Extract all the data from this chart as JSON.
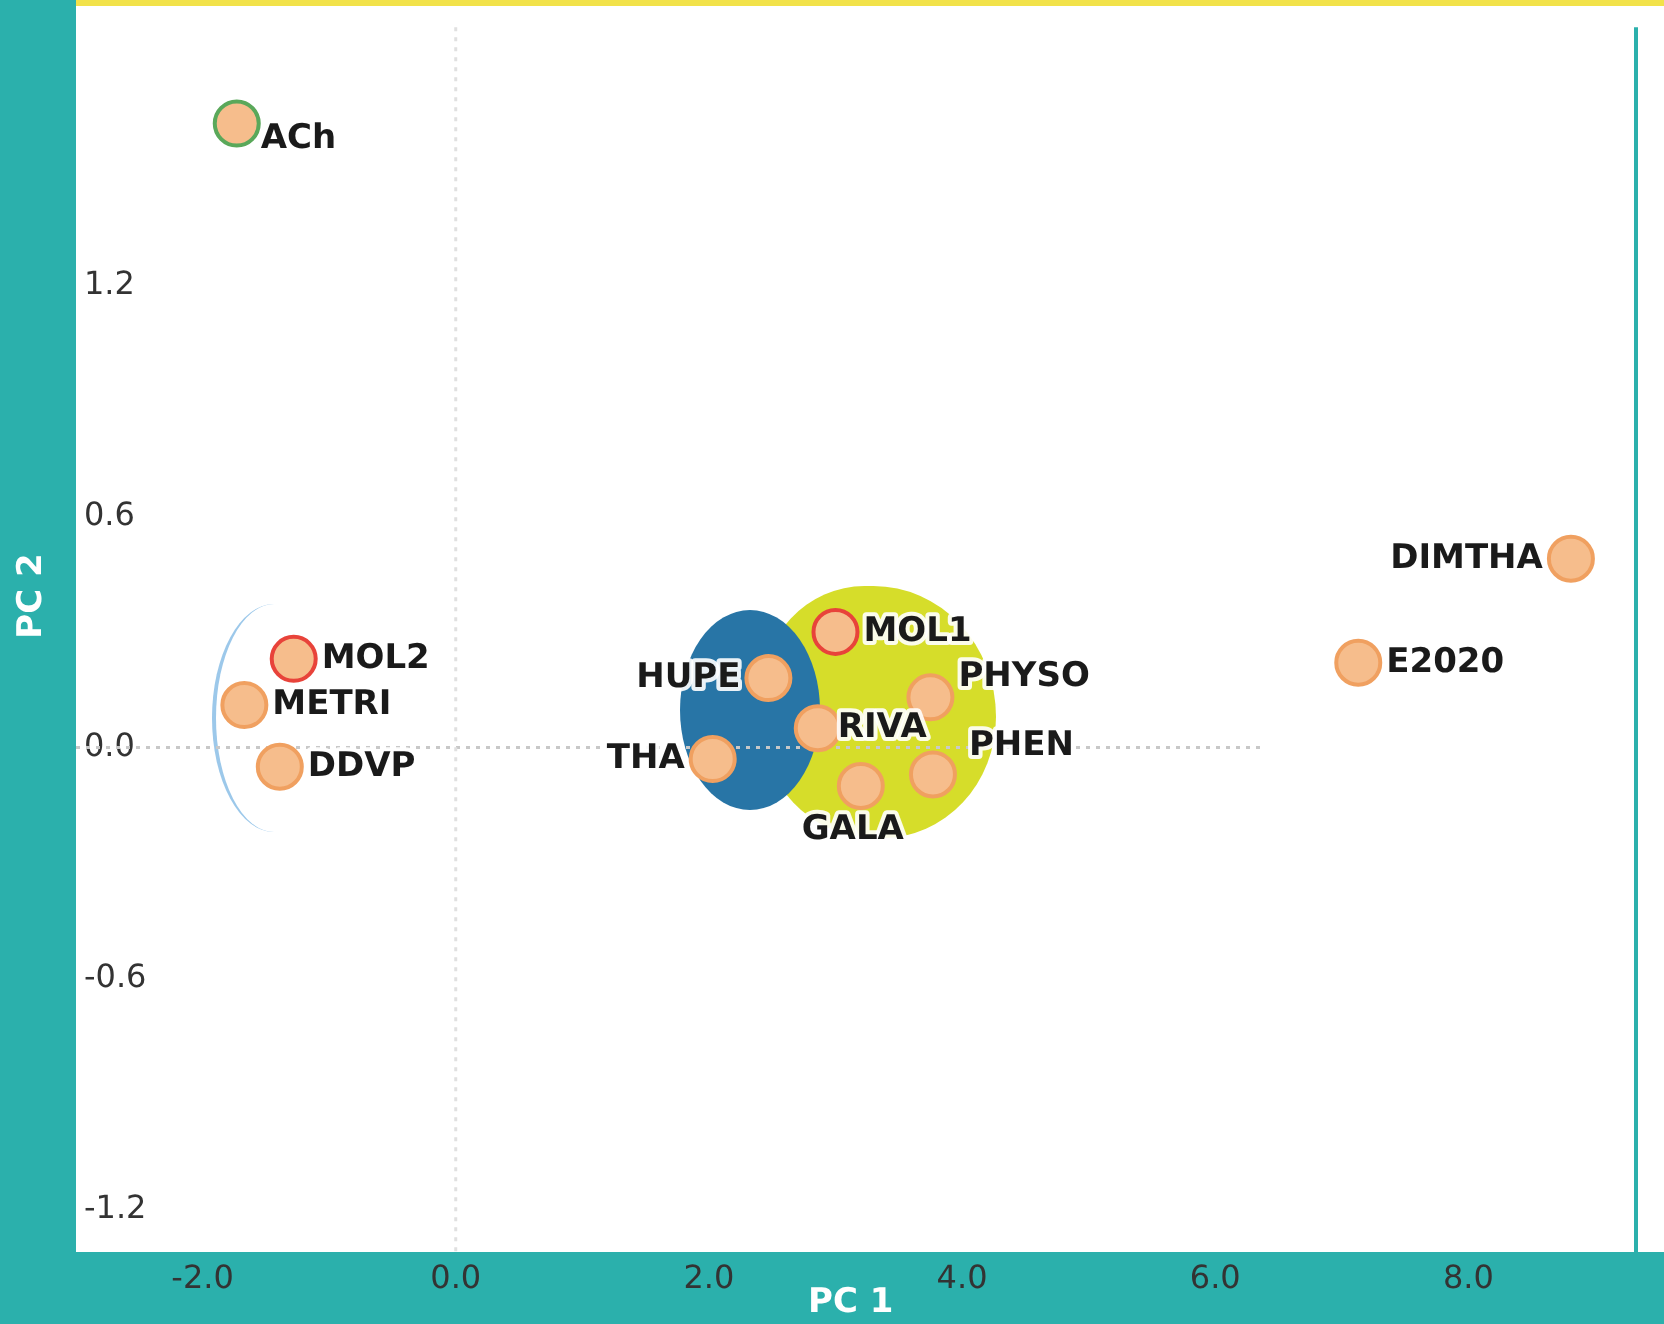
{
  "chart_data": {
    "type": "scatter",
    "xlabel": "PC 1",
    "ylabel": "PC 2",
    "xlim": [
      -3.0,
      9.34
    ],
    "xticks": [
      {
        "value": -2,
        "label": "-2.0"
      },
      {
        "value": 0,
        "label": "0.0"
      },
      {
        "value": 2,
        "label": "2.0"
      },
      {
        "value": 4,
        "label": "4.0"
      },
      {
        "value": 6,
        "label": "6.0"
      },
      {
        "value": 8,
        "label": "8.0"
      }
    ],
    "ylim": [
      -1.31,
      1.87
    ],
    "yticks": [
      {
        "value": -1.2,
        "label": "-1.2"
      },
      {
        "value": -0.6,
        "label": "-0.6"
      },
      {
        "value": 0,
        "label": "0.0"
      },
      {
        "value": 0.6,
        "label": "0.6"
      },
      {
        "value": 1.2,
        "label": "1.2"
      }
    ],
    "grid": false,
    "legend": false,
    "marker": "circle",
    "ref_lines": [
      {
        "axis": "y",
        "value": 0,
        "color": "#c8c8c8",
        "line_style": "dotted"
      },
      {
        "axis": "x",
        "value": 0,
        "color": "#e0e0e0",
        "line_style": "dotted"
      }
    ],
    "series": [
      {
        "x": [
          -1.73,
          -1.28,
          -1.67,
          -1.39,
          2.47,
          3.0,
          3.75,
          2.86,
          2.03,
          3.2,
          3.77,
          8.81,
          7.13
        ],
        "values": [
          1.62,
          0.23,
          0.11,
          -0.05,
          0.18,
          0.3,
          0.13,
          0.05,
          -0.03,
          -0.1,
          -0.07,
          0.49,
          0.22
        ],
        "colors": [
          "#5aa85a",
          "#e8433a",
          "#f0a060",
          "#f0a060",
          "#f0a060",
          "#e8433a",
          "#f0a060",
          "#f0a060",
          "#f0a060",
          "#f0a060",
          "#f0a060",
          "#f0a060",
          "#f0a060"
        ]
      }
    ],
    "annotations": [
      {
        "text": "ACh",
        "x": -1.73,
        "y": 1.62
      },
      {
        "text": "MOL2",
        "x": -1.28,
        "y": 0.23
      },
      {
        "text": "METRI",
        "x": -1.67,
        "y": 0.11
      },
      {
        "text": "DDVP",
        "x": -1.39,
        "y": -0.05
      },
      {
        "text": "HUPE",
        "x": 2.47,
        "y": 0.18
      },
      {
        "text": "MOL1",
        "x": 3.0,
        "y": 0.3
      },
      {
        "text": "PHYSO",
        "x": 3.75,
        "y": 0.13
      },
      {
        "text": "RIVA",
        "x": 2.86,
        "y": 0.05
      },
      {
        "text": "THA",
        "x": 2.03,
        "y": -0.03
      },
      {
        "text": "GALA",
        "x": 3.2,
        "y": -0.1
      },
      {
        "text": "PHEN",
        "x": 3.77,
        "y": -0.07
      },
      {
        "text": "DIMTHA",
        "x": 8.81,
        "y": 0.49
      },
      {
        "text": "E2020",
        "x": 7.13,
        "y": 0.22
      }
    ]
  }
}
